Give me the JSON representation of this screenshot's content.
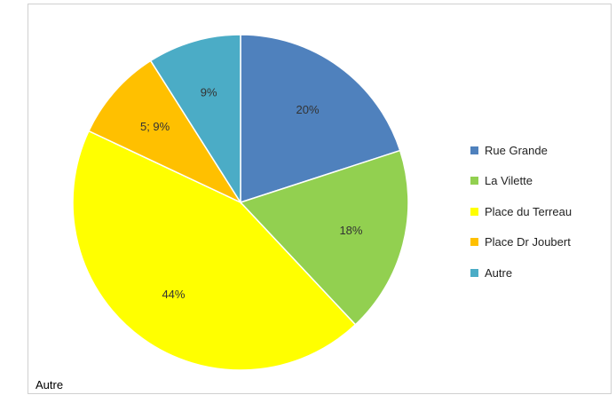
{
  "chart_data": {
    "type": "pie",
    "categories": [
      "Rue Grande",
      "La Vilette",
      "Place du Terreau",
      "Place Dr Joubert",
      "Autre"
    ],
    "values": [
      20,
      18,
      44,
      9,
      9
    ],
    "data_labels": [
      "20%",
      "18%",
      "44%",
      "5; 9%",
      "9%"
    ],
    "colors": [
      "#4F81BD",
      "#92D050",
      "#FFFF00",
      "#FFC000",
      "#4BACC6"
    ],
    "start_angle_deg": 0,
    "direction": "clockwise",
    "legend_position": "right",
    "title": ""
  },
  "caption": "Autre"
}
